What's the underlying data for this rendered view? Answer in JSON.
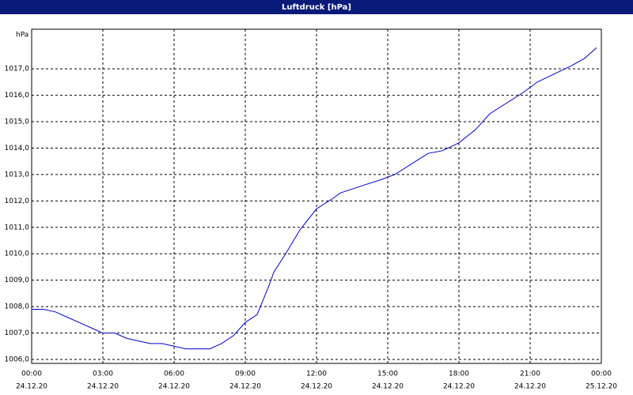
{
  "chart_data": {
    "type": "line",
    "title": "Luftdruck [hPa]",
    "y_unit": "hPa",
    "x": [
      0,
      0.5,
      1,
      1.5,
      2,
      2.5,
      3,
      3.5,
      4,
      4.5,
      5,
      5.5,
      6,
      6.5,
      7,
      7.5,
      8,
      8.5,
      9,
      9.5,
      10,
      10.2,
      10.7,
      11.3,
      12,
      12.7,
      13,
      14,
      14.7,
      15.3,
      16,
      16.7,
      17.3,
      18,
      18.7,
      19.3,
      20,
      20.7,
      21.3,
      22,
      22.7,
      23.3,
      23.8
    ],
    "series": [
      {
        "name": "Luftdruck",
        "color": "#0000cc",
        "values": [
          1007.9,
          1007.9,
          1007.8,
          1007.6,
          1007.4,
          1007.2,
          1007.0,
          1007.0,
          1006.8,
          1006.7,
          1006.6,
          1006.6,
          1006.5,
          1006.4,
          1006.4,
          1006.4,
          1006.6,
          1006.9,
          1007.4,
          1007.7,
          1008.8,
          1009.3,
          1010.0,
          1010.9,
          1011.7,
          1012.1,
          1012.3,
          1012.6,
          1012.8,
          1013.0,
          1013.4,
          1013.8,
          1013.9,
          1014.2,
          1014.7,
          1015.3,
          1015.7,
          1016.1,
          1016.5,
          1016.8,
          1017.1,
          1017.4,
          1017.8
        ]
      }
    ],
    "xlim": [
      0,
      24
    ],
    "ylim": [
      1005.85,
      1018.5
    ],
    "xticks": [
      {
        "value": 0,
        "label": "00:00"
      },
      {
        "value": 3,
        "label": "03:00"
      },
      {
        "value": 6,
        "label": "06:00"
      },
      {
        "value": 9,
        "label": "09:00"
      },
      {
        "value": 12,
        "label": "12:00"
      },
      {
        "value": 15,
        "label": "15:00"
      },
      {
        "value": 18,
        "label": "18:00"
      },
      {
        "value": 21,
        "label": "21:00"
      },
      {
        "value": 24,
        "label": "00:00"
      }
    ],
    "xtick_dates": [
      "24.12.20",
      "24.12.20",
      "24.12.20",
      "24.12.20",
      "24.12.20",
      "24.12.20",
      "24.12.20",
      "24.12.20",
      "25.12.20"
    ],
    "yticks": [
      {
        "value": 1006,
        "label": "1006,0"
      },
      {
        "value": 1007,
        "label": "1007,0"
      },
      {
        "value": 1008,
        "label": "1008,0"
      },
      {
        "value": 1009,
        "label": "1009,0"
      },
      {
        "value": 1010,
        "label": "1010,0"
      },
      {
        "value": 1011,
        "label": "1011,0"
      },
      {
        "value": 1012,
        "label": "1012,0"
      },
      {
        "value": 1013,
        "label": "1013,0"
      },
      {
        "value": 1014,
        "label": "1014,0"
      },
      {
        "value": 1015,
        "label": "1015,0"
      },
      {
        "value": 1016,
        "label": "1016,0"
      },
      {
        "value": 1017,
        "label": "1017,0"
      }
    ],
    "grid": true
  }
}
